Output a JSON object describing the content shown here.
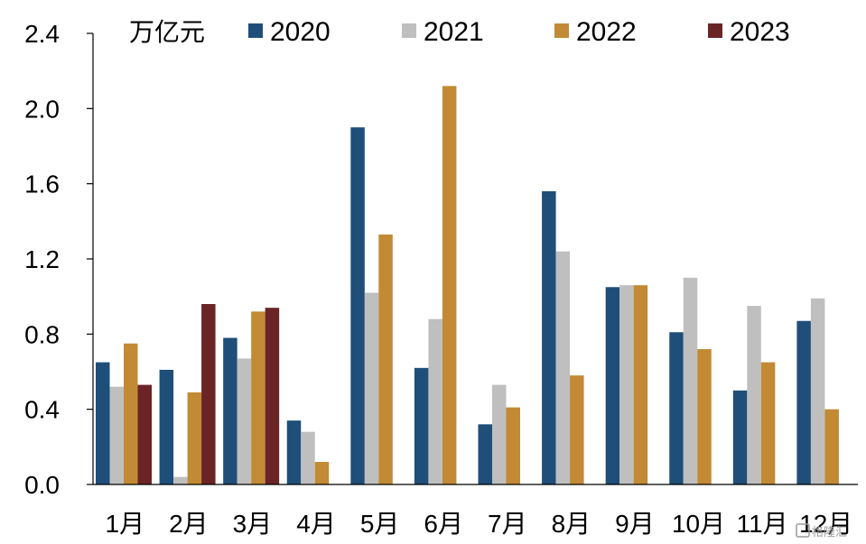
{
  "chart_data": {
    "type": "bar",
    "unit_label": "万亿元",
    "categories": [
      "1月",
      "2月",
      "3月",
      "4月",
      "5月",
      "6月",
      "7月",
      "8月",
      "9月",
      "10月",
      "11月",
      "12月"
    ],
    "series": [
      {
        "name": "2020",
        "color": "#1f4e79",
        "values": [
          0.65,
          0.61,
          0.78,
          0.34,
          1.9,
          0.62,
          0.32,
          1.56,
          1.05,
          0.81,
          0.5,
          0.87
        ]
      },
      {
        "name": "2021",
        "color": "#bfbfbf",
        "values": [
          0.52,
          0.04,
          0.67,
          0.28,
          1.02,
          0.88,
          0.53,
          1.24,
          1.06,
          1.1,
          0.95,
          0.99
        ]
      },
      {
        "name": "2022",
        "color": "#c28a34",
        "values": [
          0.75,
          0.49,
          0.92,
          0.12,
          1.33,
          2.12,
          0.41,
          0.58,
          1.06,
          0.72,
          0.65,
          0.4
        ]
      },
      {
        "name": "2023",
        "color": "#6b2426",
        "values": [
          0.53,
          0.96,
          0.94,
          null,
          null,
          null,
          null,
          null,
          null,
          null,
          null,
          null
        ]
      }
    ],
    "ylim": [
      0,
      2.4
    ],
    "yticks": [
      "0.0",
      "0.4",
      "0.8",
      "1.2",
      "1.6",
      "2.0",
      "2.4"
    ],
    "legend_position": "top",
    "grid": false
  },
  "watermark": {
    "text": "格隆汇",
    "icon": "logo-icon"
  }
}
